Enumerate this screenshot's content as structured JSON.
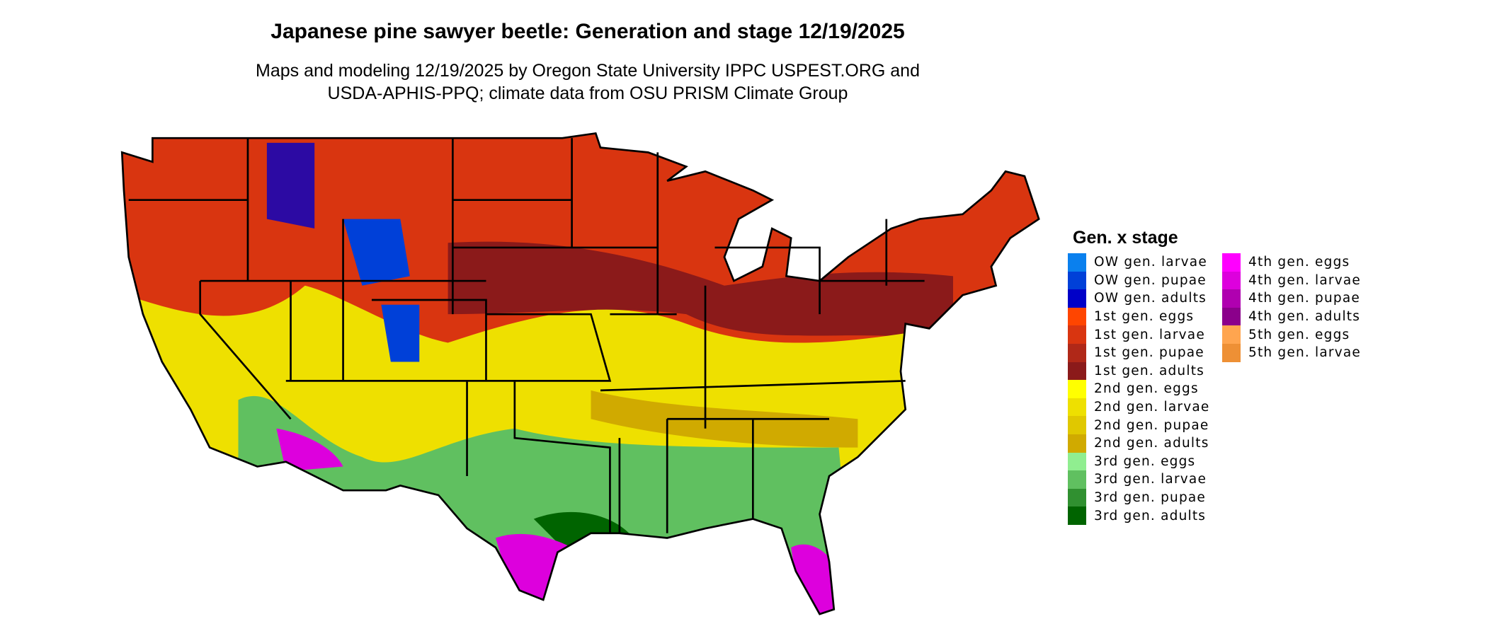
{
  "title": "Japanese pine sawyer beetle: Generation and stage 12/19/2025",
  "subtitle": {
    "line1": "Maps and modeling 12/19/2025 by Oregon State University IPPC USPEST.ORG and",
    "line2": "USDA-APHIS-PPQ; climate data from OSU PRISM Climate Group"
  },
  "map": {
    "region": "Contiguous United States",
    "dominant_stages": [
      "1st gen. larvae",
      "1st gen. adults",
      "2nd gen. larvae",
      "3rd gen. larvae",
      "4th gen. larvae",
      "OW gen. adults"
    ]
  },
  "legend": {
    "title": "Gen. x stage",
    "columns": [
      [
        {
          "label": "OW gen. larvae",
          "color": "#0a80ee"
        },
        {
          "label": "OW gen. pupae",
          "color": "#0040d8"
        },
        {
          "label": "OW gen. adults",
          "color": "#0000c8"
        },
        {
          "label": "1st gen. eggs",
          "color": "#ff4500"
        },
        {
          "label": "1st gen. larvae",
          "color": "#d93510"
        },
        {
          "label": "1st gen. pupae",
          "color": "#b02818"
        },
        {
          "label": "1st gen. adults",
          "color": "#8b1a1a"
        },
        {
          "label": "2nd gen. eggs",
          "color": "#ffff00"
        },
        {
          "label": "2nd gen. larvae",
          "color": "#eee000"
        },
        {
          "label": "2nd gen. pupae",
          "color": "#e0c800"
        },
        {
          "label": "2nd gen. adults",
          "color": "#d0aa00"
        },
        {
          "label": "3rd gen. eggs",
          "color": "#90ee90"
        },
        {
          "label": "3rd gen. larvae",
          "color": "#60c060"
        },
        {
          "label": "3rd gen. pupae",
          "color": "#309030"
        },
        {
          "label": "3rd gen. adults",
          "color": "#006400"
        }
      ],
      [
        {
          "label": "4th gen. eggs",
          "color": "#ff00ff"
        },
        {
          "label": "4th gen. larvae",
          "color": "#dd00dd"
        },
        {
          "label": "4th gen. pupae",
          "color": "#b000b0"
        },
        {
          "label": "4th gen. adults",
          "color": "#8b008b"
        },
        {
          "label": "5th gen. eggs",
          "color": "#ffa54f"
        },
        {
          "label": "5th gen. larvae",
          "color": "#ee9035"
        }
      ]
    ]
  }
}
